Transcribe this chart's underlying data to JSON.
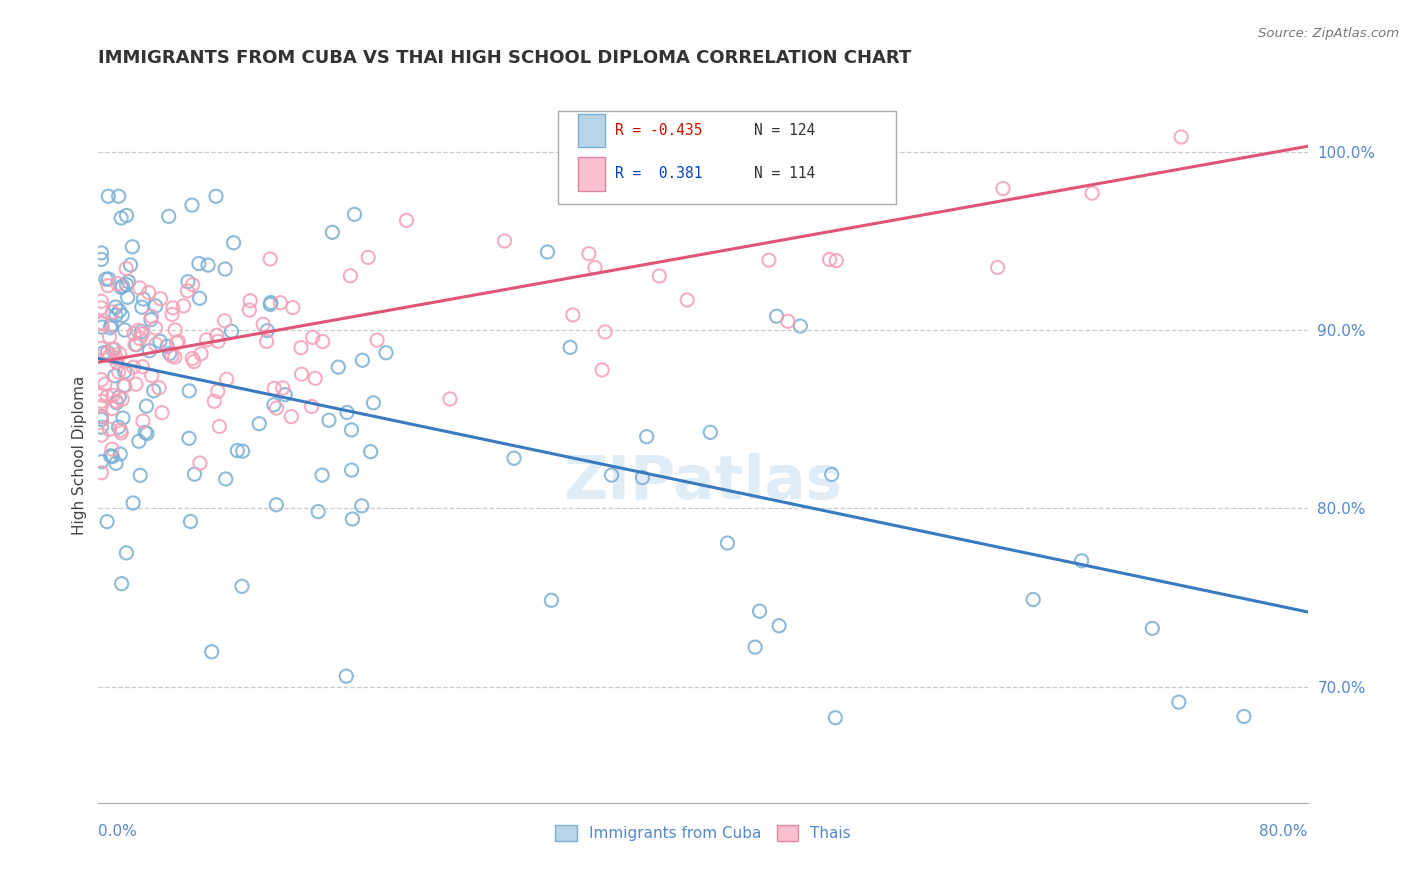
{
  "title": "IMMIGRANTS FROM CUBA VS THAI HIGH SCHOOL DIPLOMA CORRELATION CHART",
  "source": "Source: ZipAtlas.com",
  "ylabel": "High School Diploma",
  "right_yticks": [
    0.7,
    0.8,
    0.9,
    1.0
  ],
  "right_yticklabels": [
    "70.0%",
    "80.0%",
    "90.0%",
    "100.0%"
  ],
  "xlim": [
    0.0,
    0.8
  ],
  "ylim": [
    0.635,
    1.025
  ],
  "cuba_color": "#7bafd4",
  "thai_color": "#f4a0b5",
  "cuba_line_color": "#3a7bbf",
  "thai_line_color": "#e05575",
  "background_color": "#ffffff",
  "grid_color": "#cccccc",
  "title_color": "#333333",
  "watermark": "ZIPatlas",
  "cuba_line_x0": 0.0,
  "cuba_line_y0": 0.884,
  "cuba_line_x1": 0.8,
  "cuba_line_y1": 0.742,
  "thai_line_x0": 0.0,
  "thai_line_y0": 0.882,
  "thai_line_x1": 0.8,
  "thai_line_y1": 1.003,
  "legend_r_cuba": "R = -0.435",
  "legend_n_cuba": "N = 124",
  "legend_r_thai": "R =  0.381",
  "legend_n_thai": "N = 114",
  "legend_label_cuba": "Immigrants from Cuba",
  "legend_label_thai": "Thais"
}
